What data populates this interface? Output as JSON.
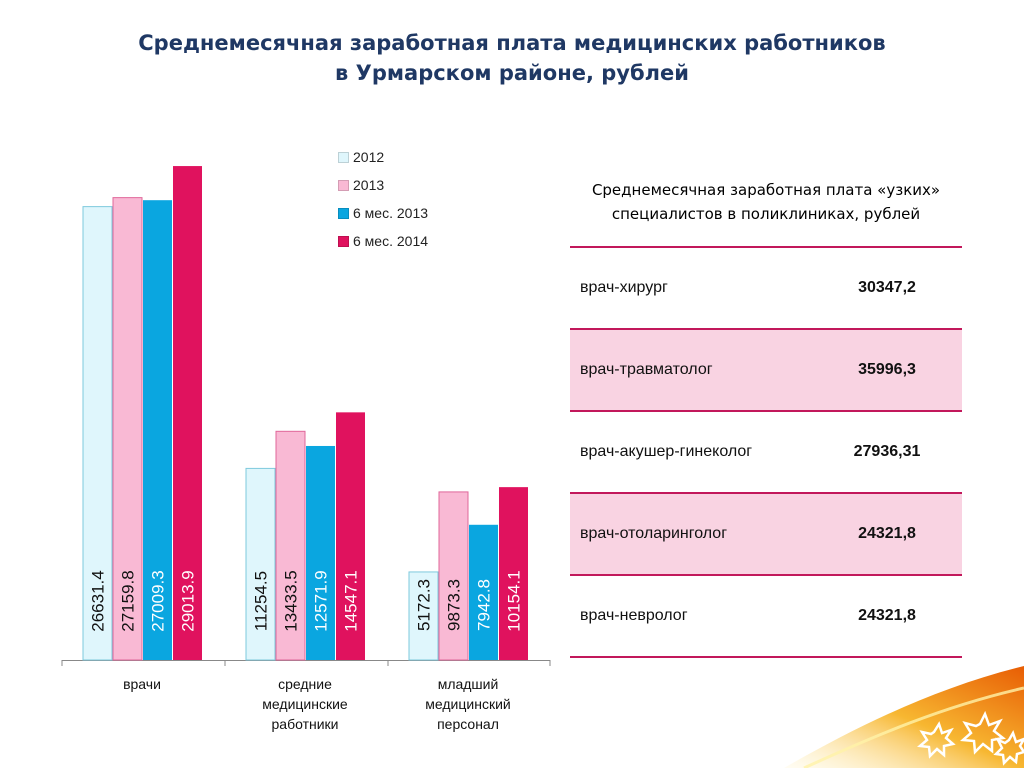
{
  "title": {
    "line1": "Среднемесячная заработная плата медицинских работников",
    "line2": "в Урмарском районе, рублей"
  },
  "chart_data": {
    "type": "bar",
    "categories": [
      "врачи",
      "средние медицинские работники",
      "младший медицинский персонал"
    ],
    "category_lines": [
      [
        "врачи"
      ],
      [
        "средние",
        "медицинские",
        "работники"
      ],
      [
        "младший",
        "медицинский",
        "персонал"
      ]
    ],
    "series": [
      {
        "name": "2012",
        "color": "#dff6fc",
        "values": [
          26631.4,
          11254.5,
          5172.3
        ],
        "labels": [
          "26631.4",
          "11254.5",
          "5172.3"
        ]
      },
      {
        "name": "2013",
        "color": "#f9b9d4",
        "values": [
          27159.8,
          13433.5,
          9873.3
        ],
        "labels": [
          "27159.8",
          "13433.5",
          "9873.3"
        ]
      },
      {
        "name": "6 мес. 2013",
        "color": "#0aa6e0",
        "values": [
          27009.3,
          12571.9,
          7942.8
        ],
        "labels": [
          "27009.3",
          "12571.9",
          "7942.8"
        ]
      },
      {
        "name": "6 мес. 2014",
        "color": "#e0125e",
        "values": [
          29013.9,
          14547.1,
          10154.1
        ],
        "labels": [
          "29013.9",
          "14547.1",
          "10154.1"
        ]
      }
    ],
    "ylim": [
      0,
      30000
    ],
    "legend": "top-right",
    "grid": false
  },
  "table": {
    "title_line1": "Среднемесячная заработная плата «узких»",
    "title_line2": "специалистов в поликлиниках, рублей",
    "rows": [
      {
        "name": "врач-хирург",
        "value": "30347,2"
      },
      {
        "name": "врач-травматолог",
        "value": "35996,3"
      },
      {
        "name": "врач-акушер-гинеколог",
        "value": "27936,31"
      },
      {
        "name": "врач-отоларинголог",
        "value": "24321,8"
      },
      {
        "name": "врач-невролог",
        "value": "24321,8"
      }
    ]
  },
  "colors": {
    "title": "#1f3864",
    "table_rule": "#c2185b",
    "table_shade": "#f9d3e2"
  }
}
